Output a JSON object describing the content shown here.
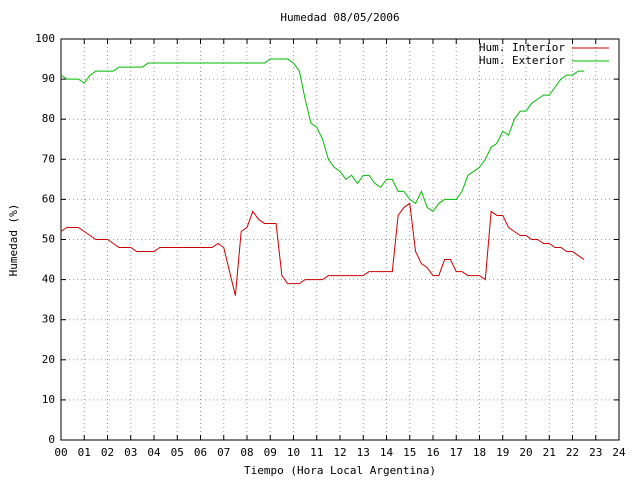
{
  "chart_data": {
    "type": "line",
    "title": "Humedad 08/05/2006",
    "x_label": "Tiempo (Hora Local Argentina)",
    "y_label": "Humedad (%)",
    "x": [
      0,
      0.25,
      0.5,
      0.75,
      1,
      1.25,
      1.5,
      1.75,
      2,
      2.25,
      2.5,
      2.75,
      3,
      3.25,
      3.5,
      3.75,
      4,
      4.25,
      4.5,
      4.75,
      5,
      5.25,
      5.5,
      5.75,
      6,
      6.25,
      6.5,
      6.75,
      7,
      7.25,
      7.5,
      7.75,
      8,
      8.25,
      8.5,
      8.75,
      9,
      9.25,
      9.5,
      9.75,
      10,
      10.25,
      10.5,
      10.75,
      11,
      11.25,
      11.5,
      11.75,
      12,
      12.25,
      12.5,
      12.75,
      13,
      13.25,
      13.5,
      13.75,
      14,
      14.25,
      14.5,
      14.75,
      15,
      15.25,
      15.5,
      15.75,
      16,
      16.25,
      16.5,
      16.75,
      17,
      17.25,
      17.5,
      17.75,
      18,
      18.25,
      18.5,
      18.75,
      19,
      19.25,
      19.5,
      19.75,
      20,
      20.25,
      20.5,
      20.75,
      21,
      21.25,
      21.5,
      21.75,
      22,
      22.25,
      22.5
    ],
    "series": [
      {
        "name": "Hum. Interior",
        "color": "#cc0000",
        "values": [
          52,
          53,
          53,
          53,
          52,
          51,
          50,
          50,
          50,
          49,
          48,
          48,
          48,
          47,
          47,
          47,
          47,
          48,
          48,
          48,
          48,
          48,
          48,
          48,
          48,
          48,
          48,
          49,
          48,
          42,
          36,
          52,
          53,
          57,
          55,
          54,
          54,
          54,
          41,
          39,
          39,
          39,
          40,
          40,
          40,
          40,
          41,
          41,
          41,
          41,
          41,
          41,
          41,
          42,
          42,
          42,
          42,
          42,
          56,
          58,
          59,
          47,
          44,
          43,
          41,
          41,
          45,
          45,
          42,
          42,
          41,
          41,
          41,
          40,
          57,
          56,
          56,
          53,
          52,
          51,
          51,
          50,
          50,
          49,
          49,
          48,
          48,
          47,
          47,
          46,
          45
        ]
      },
      {
        "name": "Hum. Exterior",
        "color": "#00bb00",
        "values": [
          91,
          90,
          90,
          90,
          89,
          91,
          92,
          92,
          92,
          92,
          93,
          93,
          93,
          93,
          93,
          94,
          94,
          94,
          94,
          94,
          94,
          94,
          94,
          94,
          94,
          94,
          94,
          94,
          94,
          94,
          94,
          94,
          94,
          94,
          94,
          94,
          95,
          95,
          95,
          95,
          94,
          92,
          85,
          79,
          78,
          75,
          70,
          68,
          67,
          65,
          66,
          64,
          66,
          66,
          64,
          63,
          65,
          65,
          62,
          62,
          60,
          59,
          62,
          58,
          57,
          59,
          60,
          60,
          60,
          62,
          66,
          67,
          68,
          70,
          73,
          74,
          77,
          76,
          80,
          82,
          82,
          84,
          85,
          86,
          86,
          88,
          90,
          91,
          91,
          92,
          92
        ]
      }
    ],
    "xlim": [
      0,
      24
    ],
    "xticks": [
      {
        "value": 0,
        "label": "00"
      },
      {
        "value": 1,
        "label": "01"
      },
      {
        "value": 2,
        "label": "02"
      },
      {
        "value": 3,
        "label": "03"
      },
      {
        "value": 4,
        "label": "04"
      },
      {
        "value": 5,
        "label": "05"
      },
      {
        "value": 6,
        "label": "06"
      },
      {
        "value": 7,
        "label": "07"
      },
      {
        "value": 8,
        "label": "08"
      },
      {
        "value": 9,
        "label": "09"
      },
      10,
      11,
      12,
      13,
      14,
      15,
      16,
      17,
      18,
      19,
      20,
      21,
      22,
      23,
      24
    ],
    "ylim": [
      0,
      100
    ],
    "yticks": [
      0,
      10,
      20,
      30,
      40,
      50,
      60,
      70,
      80,
      90,
      100
    ],
    "grid": true,
    "legend": "top-right"
  }
}
